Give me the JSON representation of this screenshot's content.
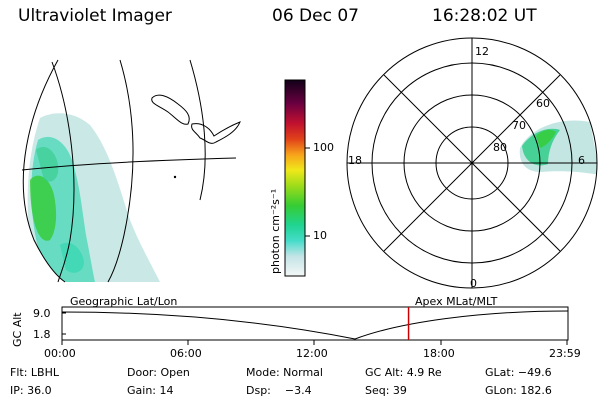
{
  "header": {
    "instrument": "Ultraviolet Imager",
    "date": "06 Dec 07",
    "time": "16:28:02 UT"
  },
  "colorbar": {
    "unit_label": "photon cm⁻²s⁻¹",
    "ticks": [
      "100",
      "10"
    ]
  },
  "polar_plot": {
    "mlt_labels": [
      "12",
      "18",
      "6",
      "0"
    ],
    "lat_labels": [
      "60",
      "70",
      "80"
    ]
  },
  "timeline": {
    "y_axis_label": "GC Alt",
    "y_ticks": [
      "9.0",
      "1.8"
    ],
    "left_caption": "Geographic Lat/Lon",
    "right_caption": "Apex  MLat/MLT",
    "x_ticks": [
      "00:00",
      "06:00",
      "12:00",
      "18:00",
      "23:59"
    ],
    "marker_time_hours": 16.47
  },
  "status": {
    "row1": [
      "Flt: LBHL",
      "Door: Open",
      "Mode: Normal",
      "GC Alt: 4.9 Re",
      "GLat: −49.6"
    ],
    "row2": [
      "IP: 36.0",
      "Gain: 14",
      "Dsp:    −3.4",
      "Seq: 39",
      "GLon: 182.6"
    ]
  },
  "colors": {
    "marker": "#cc0000",
    "aurora_bright": "#33cc33",
    "aurora_mid": "#33d6b0",
    "aurora_low": "#b8e2de"
  }
}
